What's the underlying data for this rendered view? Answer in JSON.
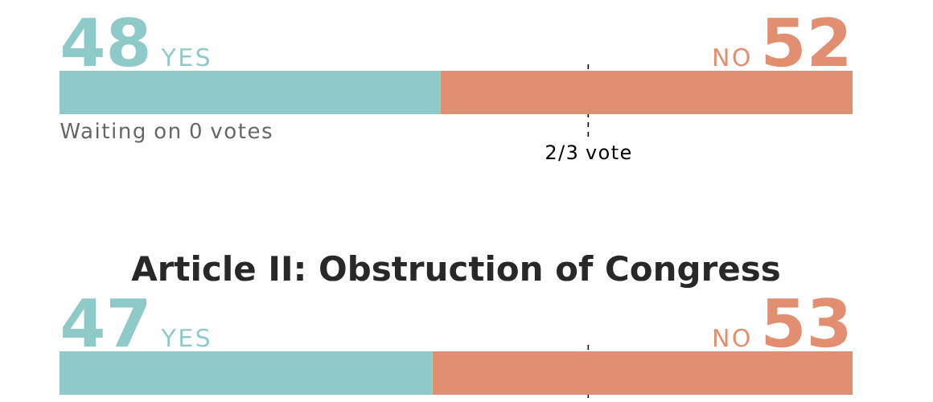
{
  "chart_data": [
    {
      "type": "bar",
      "orientation": "horizontal",
      "stacked": true,
      "data_labels": true,
      "xlim": [
        0,
        100
      ],
      "categories": [
        null
      ],
      "series": [
        {
          "name": "YES",
          "color": "#8ecac8",
          "values": [
            48
          ]
        },
        {
          "name": "NO",
          "color": "#e18f70",
          "values": [
            52
          ]
        }
      ],
      "ref_lines": [
        {
          "axis": "x",
          "value": 66.67,
          "label": "2/3 vote",
          "color": "#000000",
          "line_style": "dashed"
        }
      ],
      "annotations": [
        "Waiting on 0 votes"
      ]
    },
    {
      "type": "bar",
      "orientation": "horizontal",
      "stacked": true,
      "data_labels": true,
      "xlim": [
        0,
        100
      ],
      "title": "Article II: Obstruction of Congress",
      "categories": [
        null
      ],
      "series": [
        {
          "name": "YES",
          "color": "#8ecac8",
          "values": [
            47
          ]
        },
        {
          "name": "NO",
          "color": "#e18f70",
          "values": [
            53
          ]
        }
      ],
      "ref_lines": [
        {
          "axis": "x",
          "value": 66.67,
          "label": null,
          "color": "#000000",
          "line_style": "dashed"
        }
      ]
    }
  ]
}
